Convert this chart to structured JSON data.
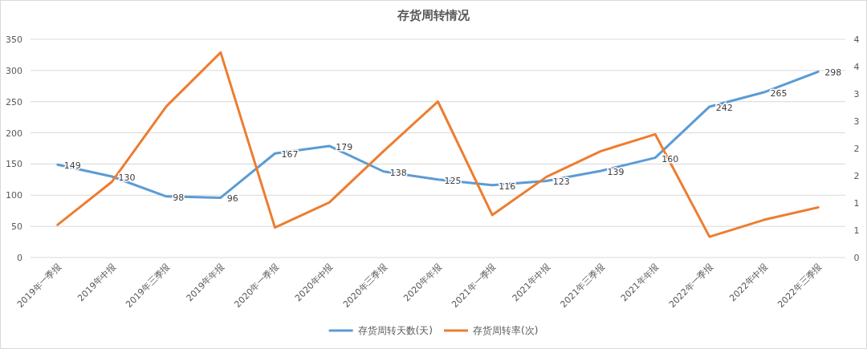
{
  "chart_data": {
    "type": "line",
    "title": "存货周转情况",
    "categories": [
      "2019年一季报",
      "2019年中报",
      "2019年三季报",
      "2019年年报",
      "2020年一季报",
      "2020年中报",
      "2020年三季报",
      "2020年年报",
      "2021年一季报",
      "2021年中报",
      "2021年三季报",
      "2021年年报",
      "2022年一季报",
      "2022年中报",
      "2022年三季报"
    ],
    "series": [
      {
        "name": "存货周转天数(天)",
        "color": "#5b9bd5",
        "values": [
          149,
          130,
          98,
          96,
          167,
          179,
          138,
          125,
          116,
          123,
          139,
          160,
          242,
          265,
          298
        ],
        "value_labels": [
          "149",
          "130",
          "98",
          "96",
          "167",
          "179",
          "138",
          "125",
          "116",
          "123",
          "139",
          "160",
          "242",
          "265",
          "298"
        ]
      },
      {
        "name": "存货周转率(次)",
        "color": "#ed7d31",
        "axis": "y2",
        "values": [
          0.6,
          1.39,
          2.77,
          3.76,
          0.55,
          1.01,
          1.95,
          2.86,
          0.78,
          1.48,
          1.95,
          2.26,
          0.38,
          0.69,
          0.92
        ]
      }
    ],
    "ylim": [
      0,
      350
    ],
    "yticks": [
      0,
      50,
      100,
      150,
      200,
      250,
      300,
      350
    ],
    "y2lim": [
      0,
      4
    ],
    "y2ticks": [
      0,
      {
        "value": 0.5,
        "label": "1"
      },
      1,
      {
        "value": 1.5,
        "label": "2"
      },
      2,
      {
        "value": 2.5,
        "label": "3"
      },
      3,
      {
        "value": 3.5,
        "label": "4"
      },
      4
    ],
    "grid": "y",
    "legend": "bottom",
    "marker": "none",
    "line_style": "solid"
  }
}
